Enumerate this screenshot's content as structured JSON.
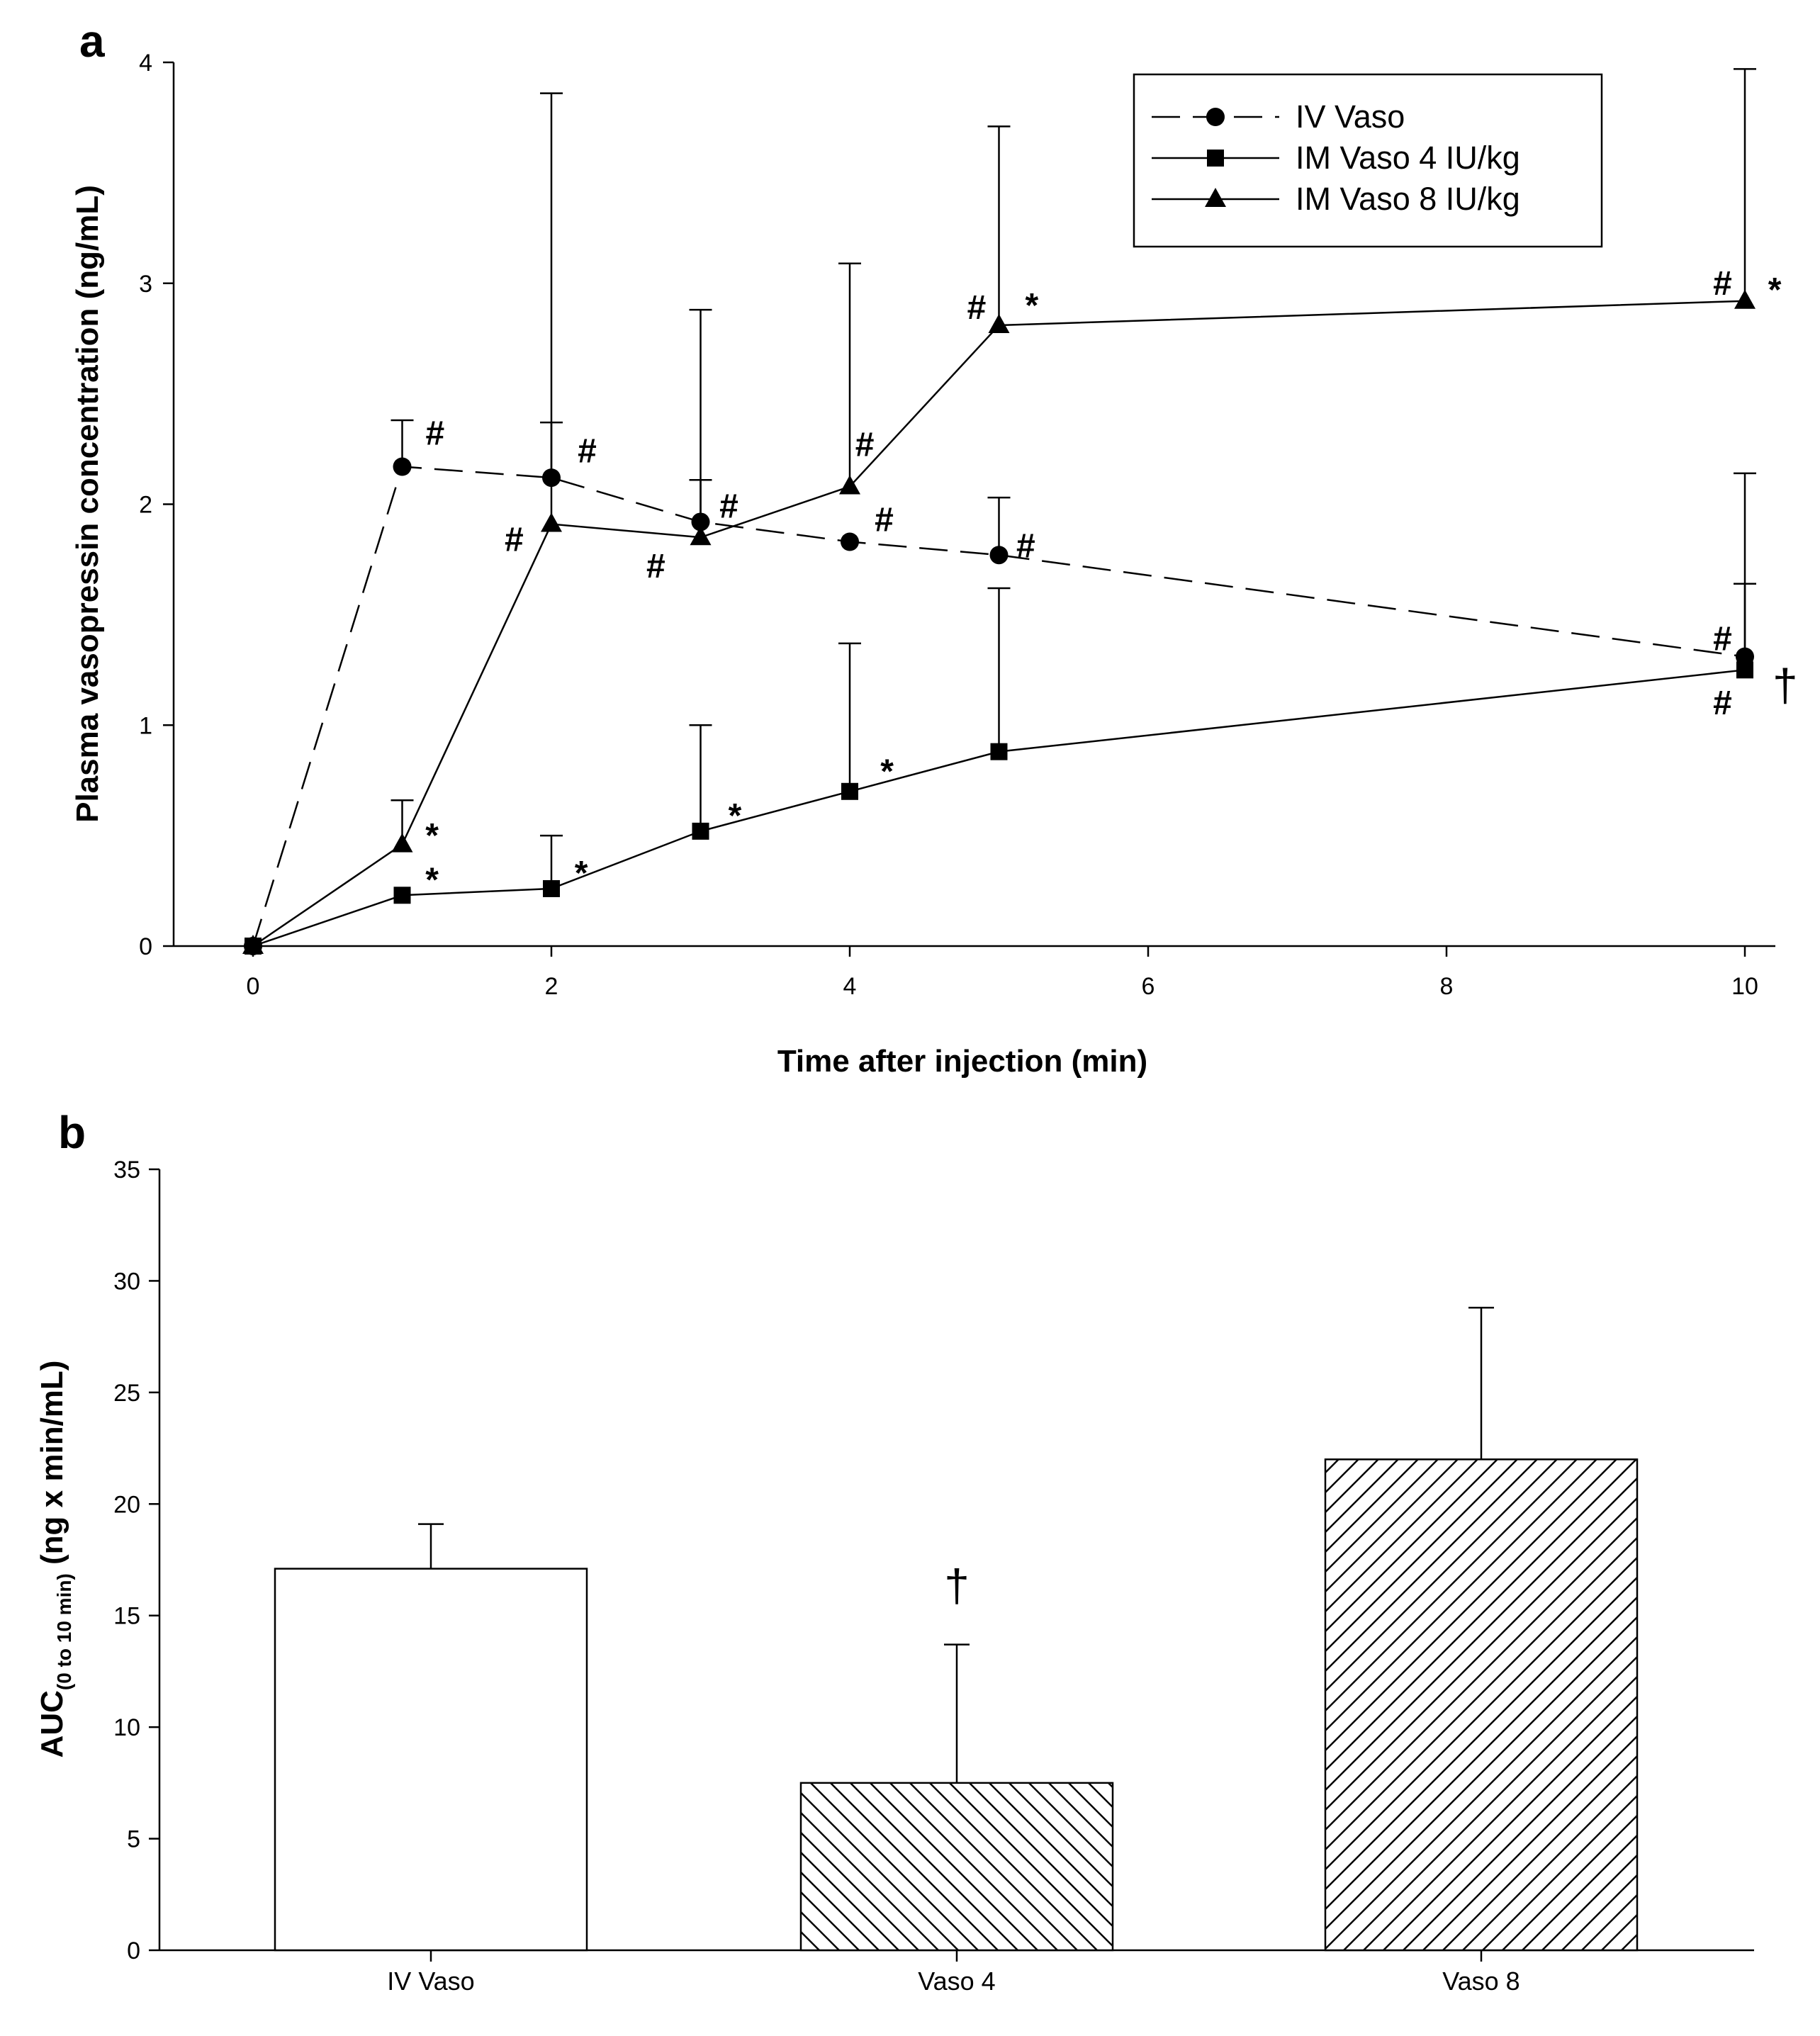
{
  "panel_a_label": "a",
  "panel_b_label": "b",
  "chart_data": [
    {
      "type": "line",
      "panel": "a",
      "xlabel": "Time after injection (min)",
      "ylabel": "Plasma vasopressin concentration (ng/mL)",
      "xticks": [
        0,
        2,
        4,
        6,
        8,
        10
      ],
      "yticks": [
        0,
        1,
        2,
        3,
        4
      ],
      "xlim": [
        -0.6,
        10.7
      ],
      "ylim": [
        0,
        4
      ],
      "legend_position": "top-right",
      "series": [
        {
          "name": "IV Vaso",
          "marker": "circle",
          "line": "dashed",
          "x": [
            0,
            1,
            2,
            3,
            4,
            5,
            10
          ],
          "y": [
            0,
            2.17,
            2.12,
            1.92,
            1.83,
            1.77,
            1.31
          ],
          "err": [
            0,
            0.21,
            0.25,
            0.19,
            0,
            0.26,
            0.33
          ]
        },
        {
          "name": "IM Vaso 4 IU/kg",
          "marker": "square",
          "line": "solid",
          "x": [
            0,
            1,
            2,
            3,
            4,
            5,
            10
          ],
          "y": [
            0,
            0.23,
            0.26,
            0.52,
            0.7,
            0.88,
            1.25
          ],
          "err": [
            0,
            0,
            0.24,
            0.48,
            0.67,
            0.74,
            0.89
          ]
        },
        {
          "name": "IM Vaso 8 IU/kg",
          "marker": "triangle",
          "line": "solid",
          "x": [
            0,
            1,
            2,
            3,
            4,
            5,
            10
          ],
          "y": [
            0,
            0.46,
            1.91,
            1.85,
            2.08,
            2.81,
            2.92
          ],
          "err": [
            0,
            0.2,
            1.95,
            1.03,
            1.01,
            0.9,
            1.05
          ]
        }
      ],
      "annotations": [
        {
          "text": "#",
          "x": 1.22,
          "y": 2.32
        },
        {
          "text": "#",
          "x": 2.24,
          "y": 2.24
        },
        {
          "text": "#",
          "x": 3.19,
          "y": 1.99
        },
        {
          "text": "#",
          "x": 4.23,
          "y": 1.93
        },
        {
          "text": "#",
          "x": 5.18,
          "y": 1.81
        },
        {
          "text": "#",
          "x": 1.75,
          "y": 1.84
        },
        {
          "text": "#",
          "x": 2.7,
          "y": 1.72
        },
        {
          "text": "#",
          "x": 4.1,
          "y": 2.27
        },
        {
          "text": "#",
          "x": 4.85,
          "y": 2.89
        },
        {
          "text": "#",
          "x": 9.85,
          "y": 3.0
        },
        {
          "text": "#",
          "x": 9.85,
          "y": 1.39
        },
        {
          "text": "#",
          "x": 9.85,
          "y": 1.1
        },
        {
          "text": "*",
          "x": 5.22,
          "y": 2.9
        },
        {
          "text": "*",
          "x": 10.2,
          "y": 2.97
        },
        {
          "text": "*",
          "x": 1.2,
          "y": 0.5
        },
        {
          "text": "*",
          "x": 1.2,
          "y": 0.3
        },
        {
          "text": "*",
          "x": 2.2,
          "y": 0.33
        },
        {
          "text": "*",
          "x": 3.23,
          "y": 0.59
        },
        {
          "text": "*",
          "x": 4.25,
          "y": 0.79
        },
        {
          "text": "†",
          "x": 10.27,
          "y": 1.18
        }
      ]
    },
    {
      "type": "bar",
      "panel": "b",
      "categories": [
        "IV Vaso",
        "Vaso 4",
        "Vaso 8"
      ],
      "values": [
        17.1,
        7.5,
        22.0
      ],
      "errors": [
        2.0,
        6.2,
        6.8
      ],
      "fills": [
        "open",
        "hatched-backslash",
        "hatched-slash"
      ],
      "ylabel_main": "AUC",
      "ylabel_sub": "(0 to 10 min)",
      "ylabel_rest": " (ng x min/mL)",
      "yticks": [
        0,
        5,
        10,
        15,
        20,
        25,
        30,
        35
      ],
      "ylim": [
        0,
        35
      ],
      "annotations": [
        {
          "text": "†",
          "category": "Vaso 4",
          "y": 16.4
        }
      ]
    }
  ]
}
